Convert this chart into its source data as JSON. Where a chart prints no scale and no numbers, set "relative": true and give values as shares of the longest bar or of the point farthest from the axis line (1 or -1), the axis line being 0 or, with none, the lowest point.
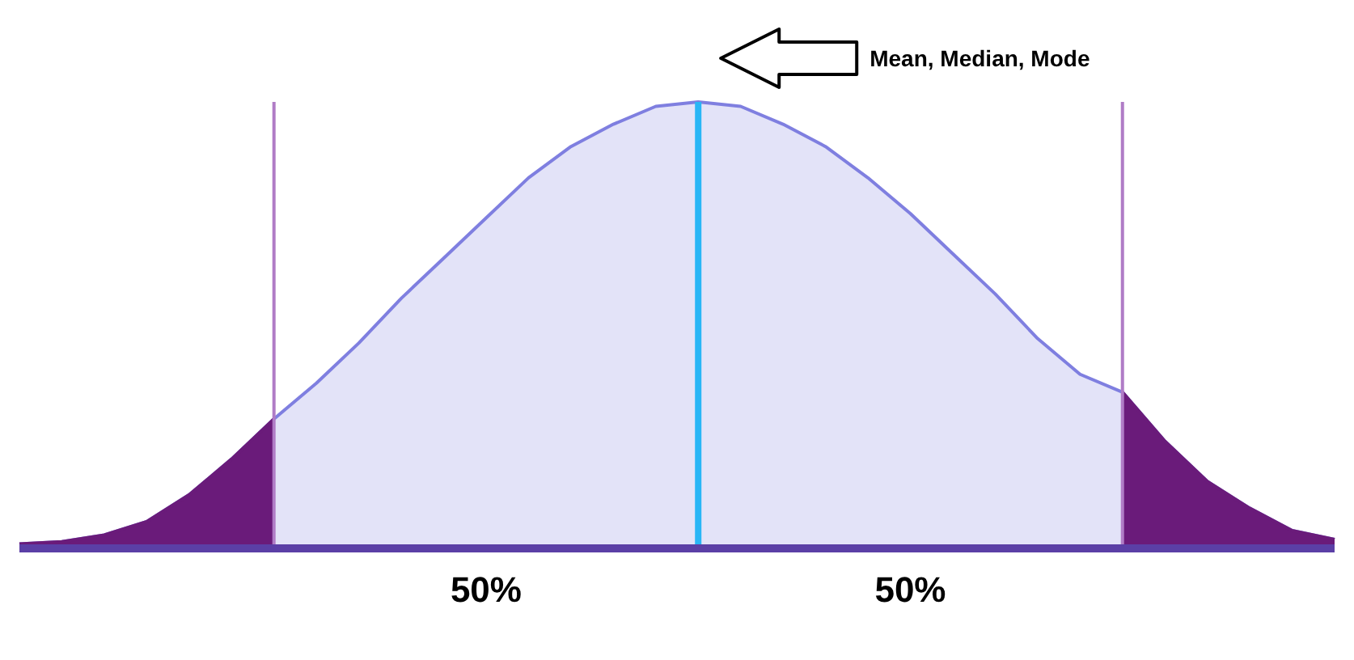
{
  "chart_data": {
    "type": "area",
    "relative": true,
    "categories": [
      null,
      null,
      null,
      null,
      null,
      null,
      null,
      null,
      null,
      null,
      null,
      null,
      null,
      null,
      null,
      null,
      null,
      null,
      null,
      null,
      null,
      null,
      null,
      null,
      null,
      null,
      null,
      null,
      null,
      null,
      null,
      null
    ],
    "series": [
      {
        "color": "#7f7fe0",
        "values": [
          0.01,
          0.015,
          0.03,
          0.06,
          0.12,
          0.2,
          0.29,
          0.37,
          0.46,
          0.56,
          0.65,
          0.74,
          0.83,
          0.9,
          0.95,
          0.99,
          1,
          0.99,
          0.95,
          0.9,
          0.83,
          0.75,
          0.66,
          0.57,
          0.47,
          0.39,
          0.35,
          0.24,
          0.15,
          0.09,
          0.04,
          0.02
        ]
      },
      {
        "color": "#6a1b7a",
        "values": [
          0.01,
          0.015,
          0.03,
          0.06,
          0.12,
          0.2,
          0.29,
          null,
          null,
          null,
          null,
          null,
          null,
          null,
          null,
          null,
          null,
          null,
          null,
          null,
          null,
          null,
          null,
          null,
          null,
          null,
          0.35,
          0.24,
          0.15,
          0.09,
          0.04,
          0.02
        ]
      }
    ],
    "annotations": [
      "Mean, Median, Mode",
      "50%",
      "50%"
    ]
  }
}
